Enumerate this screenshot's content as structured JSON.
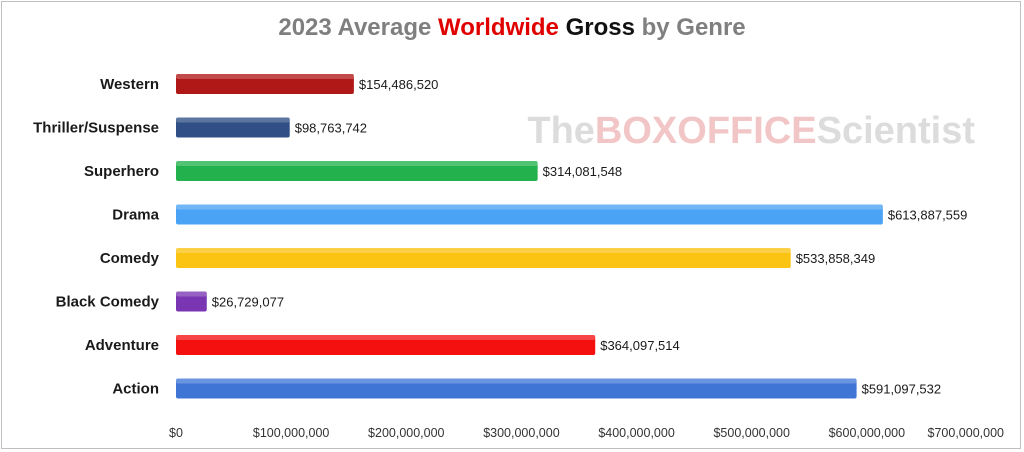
{
  "title": {
    "part1": "2023 Average ",
    "part2": "Worldwide",
    "part3": " Gross",
    "part4": " by Genre"
  },
  "watermark": {
    "part1": "The",
    "part2": "BOXOFFICE",
    "part3": "Scientist"
  },
  "colors": {
    "title_gray": "#7f7f7f",
    "title_red": "#e00000",
    "title_black": "#111111"
  },
  "chart_data": {
    "type": "bar",
    "orientation": "horizontal",
    "categories": [
      "Western",
      "Thriller/Suspense",
      "Superhero",
      "Drama",
      "Comedy",
      "Black Comedy",
      "Adventure",
      "Action"
    ],
    "values": [
      154486520,
      98763742,
      314081548,
      613887559,
      533858349,
      26729077,
      364097514,
      591097532
    ],
    "value_labels": [
      "$154,486,520",
      "$98,763,742",
      "$314,081,548",
      "$613,887,559",
      "$533,858,349",
      "$26,729,077",
      "$364,097,514",
      "$591,097,532"
    ],
    "bar_colors": [
      "#b01818",
      "#2f4f86",
      "#22b14c",
      "#4aa3f5",
      "#fbc312",
      "#7a35b3",
      "#f51010",
      "#3f76d6"
    ],
    "x_ticks": [
      0,
      100000000,
      200000000,
      300000000,
      400000000,
      500000000,
      600000000,
      700000000
    ],
    "x_tick_labels": [
      "$0",
      "$100,000,000",
      "$200,000,000",
      "$300,000,000",
      "$400,000,000",
      "$500,000,000",
      "$600,000,000",
      "$700,000,000"
    ],
    "xlim": [
      0,
      700000000
    ],
    "xlabel": "",
    "ylabel": "",
    "grid": false,
    "legend": "none"
  }
}
